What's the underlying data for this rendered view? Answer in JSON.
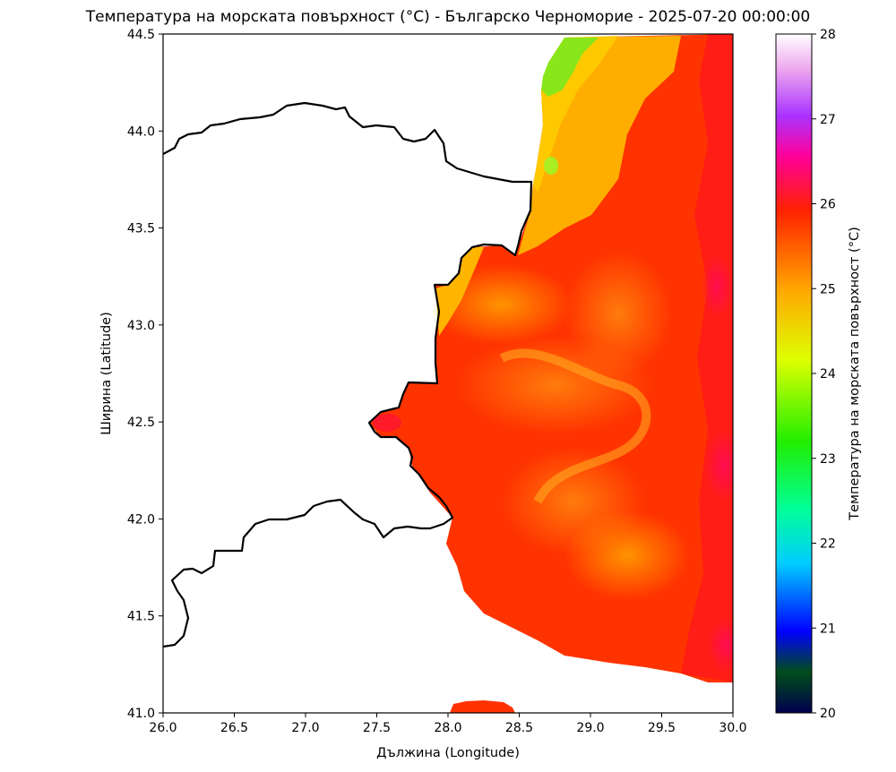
{
  "chart_data": {
    "type": "heatmap",
    "title": "Температура на морската повърхност (°C) - Българско Черноморие - 2025-07-20 00:00:00",
    "xlabel": "Дължина (Longitude)",
    "ylabel": "Ширина (Latitude)",
    "xlim": [
      26.0,
      30.0
    ],
    "ylim": [
      41.0,
      44.5
    ],
    "x_ticks": [
      "26.0",
      "26.5",
      "27.0",
      "27.5",
      "28.0",
      "28.5",
      "29.0",
      "29.5",
      "30.0"
    ],
    "y_ticks": [
      "41.0",
      "41.5",
      "42.0",
      "42.5",
      "43.0",
      "43.5",
      "44.0",
      "44.5"
    ],
    "colorbar": {
      "label": "Температура на морската повърхност (°C)",
      "range": [
        20,
        28
      ],
      "ticks": [
        "20",
        "21",
        "22",
        "23",
        "24",
        "25",
        "26",
        "27",
        "28"
      ],
      "colors": [
        "#00004d",
        "#004d1a",
        "#0000ff",
        "#00ccff",
        "#00ff99",
        "#22ee00",
        "#ddff00",
        "#ffaa00",
        "#ff2200",
        "#ff0099",
        "#aa33ff",
        "#eeaaee",
        "#ffffff"
      ]
    },
    "sea_temperature_range": [
      24.0,
      26.5
    ],
    "coastline_color": "#000000"
  }
}
